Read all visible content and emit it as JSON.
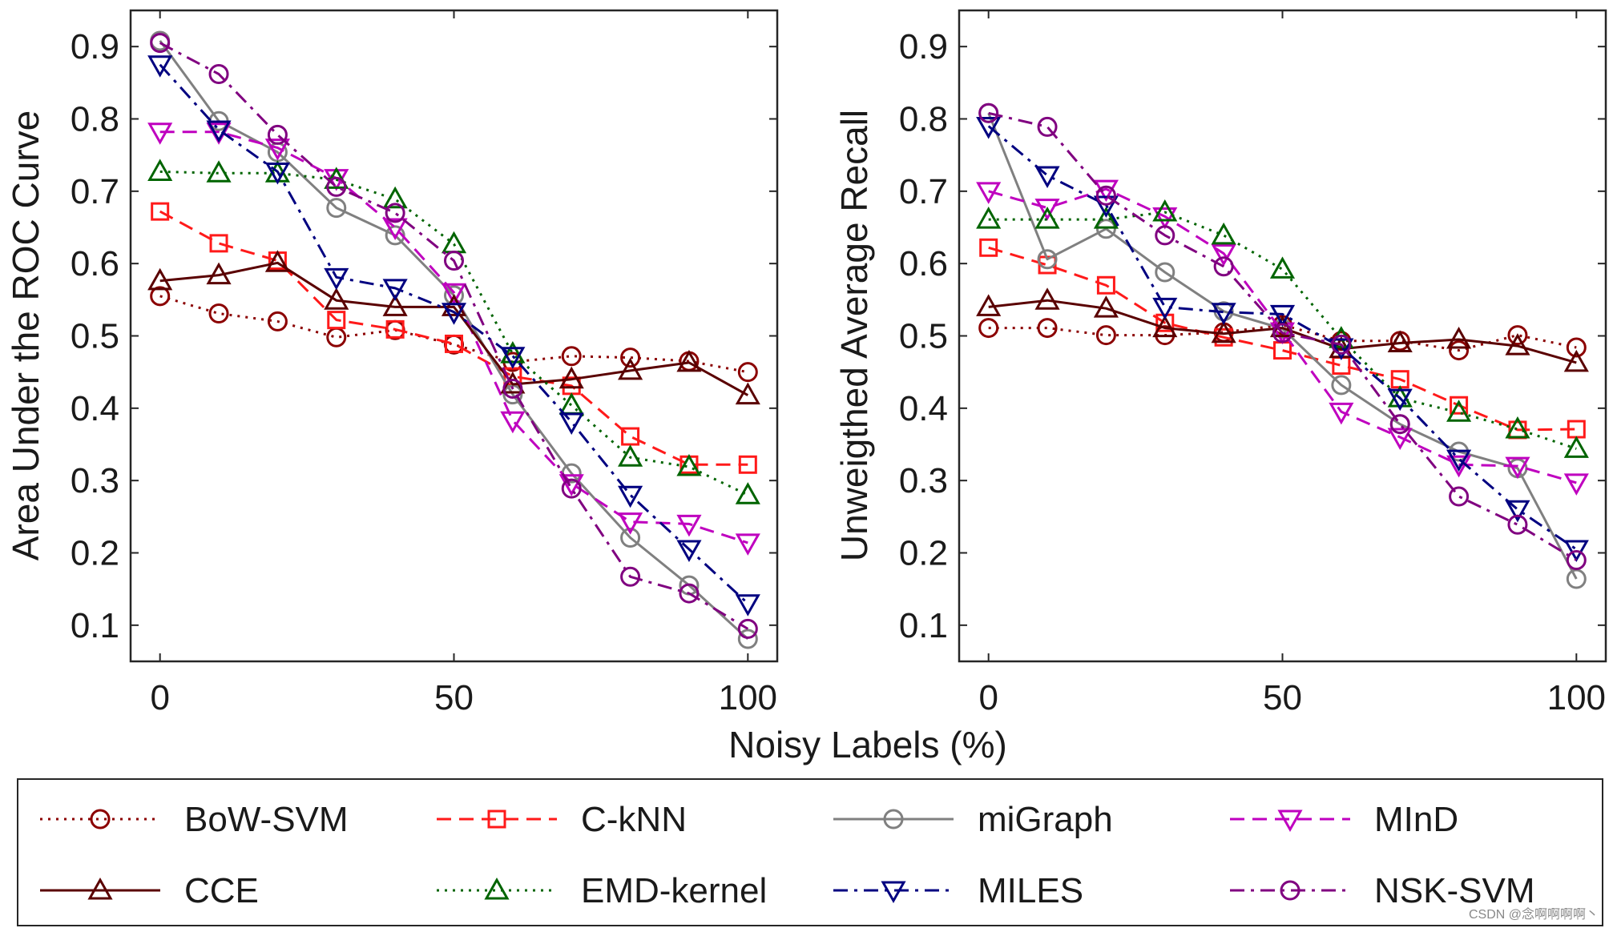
{
  "chart_data": [
    {
      "type": "line",
      "title": "",
      "xlabel": "",
      "ylabel": "Area Under the ROC Curve",
      "xlim": [
        -5,
        105
      ],
      "ylim": [
        0.05,
        0.95
      ],
      "xticks": [
        0,
        50,
        100
      ],
      "yticks": [
        0.1,
        0.2,
        0.3,
        0.4,
        0.5,
        0.6,
        0.7,
        0.8,
        0.9
      ],
      "x": [
        0,
        10,
        20,
        30,
        40,
        50,
        60,
        70,
        80,
        90,
        100
      ],
      "series": [
        {
          "name": "BoW-SVM",
          "values": [
            0.555,
            0.531,
            0.52,
            0.498,
            0.508,
            0.488,
            0.464,
            0.472,
            0.47,
            0.465,
            0.45
          ]
        },
        {
          "name": "C-kNN",
          "values": [
            0.672,
            0.628,
            0.604,
            0.522,
            0.509,
            0.489,
            0.444,
            0.431,
            0.361,
            0.322,
            0.322
          ]
        },
        {
          "name": "miGraph",
          "values": [
            0.908,
            0.797,
            0.754,
            0.677,
            0.639,
            0.556,
            0.419,
            0.31,
            0.221,
            0.155,
            0.081
          ]
        },
        {
          "name": "MInD",
          "values": [
            0.782,
            0.782,
            0.76,
            0.718,
            0.65,
            0.56,
            0.383,
            0.296,
            0.243,
            0.24,
            0.214
          ]
        },
        {
          "name": "CCE",
          "values": [
            0.576,
            0.584,
            0.601,
            0.549,
            0.54,
            0.54,
            0.433,
            0.44,
            0.452,
            0.463,
            0.418
          ]
        },
        {
          "name": "EMD-kernel",
          "values": [
            0.727,
            0.725,
            0.725,
            0.716,
            0.689,
            0.627,
            0.475,
            0.404,
            0.332,
            0.319,
            0.28
          ]
        },
        {
          "name": "MILES",
          "values": [
            0.875,
            0.785,
            0.727,
            0.581,
            0.566,
            0.533,
            0.472,
            0.381,
            0.28,
            0.205,
            0.13
          ]
        },
        {
          "name": "NSK-SVM",
          "values": [
            0.905,
            0.862,
            0.778,
            0.706,
            0.67,
            0.604,
            0.427,
            0.289,
            0.167,
            0.144,
            0.095
          ]
        }
      ]
    },
    {
      "type": "line",
      "title": "",
      "xlabel": "",
      "ylabel": "Unweigthed Average Recall",
      "xlim": [
        -5,
        105
      ],
      "ylim": [
        0.05,
        0.95
      ],
      "xticks": [
        0,
        50,
        100
      ],
      "yticks": [
        0.1,
        0.2,
        0.3,
        0.4,
        0.5,
        0.6,
        0.7,
        0.8,
        0.9
      ],
      "x": [
        0,
        10,
        20,
        30,
        40,
        50,
        60,
        70,
        80,
        90,
        100
      ],
      "series": [
        {
          "name": "BoW-SVM",
          "values": [
            0.511,
            0.511,
            0.501,
            0.501,
            0.505,
            0.515,
            0.493,
            0.493,
            0.48,
            0.501,
            0.484
          ]
        },
        {
          "name": "C-kNN",
          "values": [
            0.622,
            0.598,
            0.57,
            0.518,
            0.498,
            0.48,
            0.459,
            0.44,
            0.404,
            0.37,
            0.371
          ]
        },
        {
          "name": "miGraph",
          "values": [
            0.808,
            0.606,
            0.648,
            0.588,
            0.534,
            0.51,
            0.432,
            0.378,
            0.34,
            0.317,
            0.164
          ]
        },
        {
          "name": "MInD",
          "values": [
            0.7,
            0.677,
            0.703,
            0.665,
            0.614,
            0.506,
            0.395,
            0.36,
            0.322,
            0.32,
            0.297
          ]
        },
        {
          "name": "CCE",
          "values": [
            0.54,
            0.549,
            0.538,
            0.511,
            0.503,
            0.511,
            0.482,
            0.49,
            0.495,
            0.486,
            0.463
          ]
        },
        {
          "name": "EMD-kernel",
          "values": [
            0.661,
            0.661,
            0.661,
            0.671,
            0.639,
            0.592,
            0.496,
            0.414,
            0.394,
            0.371,
            0.344
          ]
        },
        {
          "name": "MILES",
          "values": [
            0.79,
            0.722,
            0.681,
            0.54,
            0.533,
            0.53,
            0.484,
            0.414,
            0.33,
            0.26,
            0.205
          ]
        },
        {
          "name": "NSK-SVM",
          "values": [
            0.808,
            0.789,
            0.694,
            0.639,
            0.596,
            0.504,
            0.488,
            0.378,
            0.278,
            0.239,
            0.19
          ]
        }
      ]
    }
  ],
  "shared_xlabel": "Noisy Labels (%)",
  "legend": {
    "placement": "bottom",
    "entries": [
      {
        "name": "BoW-SVM",
        "color": "#8b0000",
        "dash": "dotted",
        "marker": "circle"
      },
      {
        "name": "C-kNN",
        "color": "#ff1a1a",
        "dash": "dashed",
        "marker": "square"
      },
      {
        "name": "miGraph",
        "color": "#808080",
        "dash": "solid",
        "marker": "circle"
      },
      {
        "name": "MInD",
        "color": "#bf00bf",
        "dash": "dashed",
        "marker": "triangle-down"
      },
      {
        "name": "CCE",
        "color": "#5a0000",
        "dash": "solid",
        "marker": "triangle-up"
      },
      {
        "name": "EMD-kernel",
        "color": "#006400",
        "dash": "dotted",
        "marker": "triangle-up"
      },
      {
        "name": "MILES",
        "color": "#000080",
        "dash": "dashdot",
        "marker": "triangle-down"
      },
      {
        "name": "NSK-SVM",
        "color": "#800080",
        "dash": "dashdot",
        "marker": "circle"
      }
    ]
  },
  "watermark": "CSDN @念啊啊啊啊丶"
}
